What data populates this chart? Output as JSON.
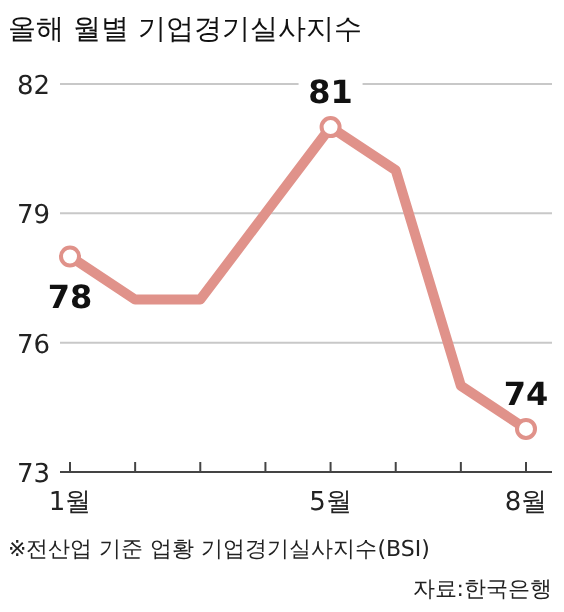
{
  "chart_data": {
    "type": "line",
    "title": "올해 월별 기업경기실사지수",
    "categories": [
      "1월",
      null,
      null,
      null,
      "5월",
      null,
      null,
      "8월"
    ],
    "series": [
      {
        "color": "#e0928a",
        "values": [
          78,
          77,
          77,
          79,
          81,
          80,
          75,
          74
        ],
        "value_labels": [
          "78",
          null,
          null,
          null,
          "81",
          null,
          null,
          "74"
        ]
      }
    ],
    "ylim": [
      73,
      82
    ],
    "yticks": [
      73,
      76,
      79,
      82
    ],
    "grid": "y",
    "line_style": "solid",
    "annotations": [
      "※전산업 기준 업황 기업경기실사지수(BSI)",
      "자료:한국은행"
    ]
  }
}
